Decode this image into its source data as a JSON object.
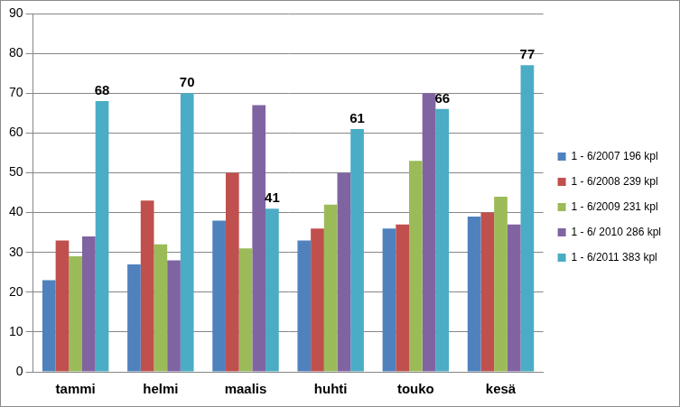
{
  "chart_data": {
    "type": "bar",
    "categories": [
      "tammi",
      "helmi",
      "maalis",
      "huhti",
      "touko",
      "kesä"
    ],
    "series": [
      {
        "name": "1 - 6/2007 196 kpl",
        "color": "#4f81bd",
        "values": [
          23,
          27,
          38,
          33,
          36,
          39
        ]
      },
      {
        "name": "1 - 6/2008 239 kpl",
        "color": "#c0504d",
        "values": [
          33,
          43,
          50,
          36,
          37,
          40
        ]
      },
      {
        "name": "1 - 6/2009 231 kpl",
        "color": "#9bbb59",
        "values": [
          29,
          32,
          31,
          42,
          53,
          44
        ]
      },
      {
        "name": "1 - 6/ 2010 286 kpl",
        "color": "#8064a2",
        "values": [
          34,
          28,
          67,
          50,
          70,
          37
        ]
      },
      {
        "name": "1 - 6/2011 383 kpl",
        "color": "#4bacc6",
        "values": [
          68,
          70,
          41,
          61,
          66,
          77
        ],
        "data_labels": true
      }
    ],
    "ylim": [
      0,
      90
    ],
    "yticks": [
      0,
      10,
      20,
      30,
      40,
      50,
      60,
      70,
      80,
      90
    ],
    "grid": true,
    "legend": "right"
  }
}
